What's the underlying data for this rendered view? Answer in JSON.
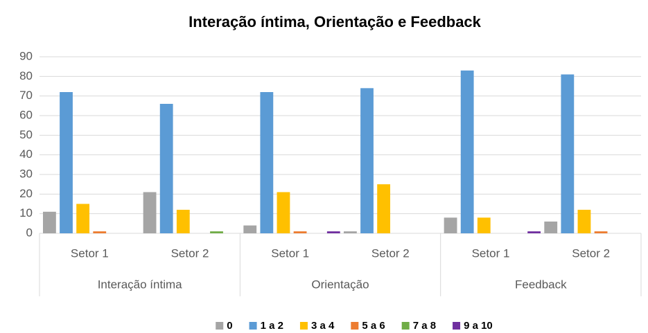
{
  "chart_data": {
    "type": "bar",
    "title": "Interação íntima, Orientação e Feedback",
    "categories": [
      "Setor 1",
      "Setor 2",
      "Setor 1",
      "Setor 2",
      "Setor 1",
      "Setor 2"
    ],
    "groups": [
      "Interação íntima",
      "Orientação",
      "Feedback"
    ],
    "series": [
      {
        "name": "0",
        "color": "#a5a5a5",
        "values": [
          11,
          21,
          4,
          1,
          8,
          6
        ]
      },
      {
        "name": "1 a 2",
        "color": "#5b9bd5",
        "values": [
          72,
          66,
          72,
          74,
          83,
          81
        ]
      },
      {
        "name": "3 a 4",
        "color": "#ffc000",
        "values": [
          15,
          12,
          21,
          25,
          8,
          12
        ]
      },
      {
        "name": "5 a 6",
        "color": "#ed7d31",
        "values": [
          1,
          0,
          1,
          0,
          0,
          1
        ]
      },
      {
        "name": "7 a 8",
        "color": "#70ad47",
        "values": [
          0,
          1,
          0,
          0,
          0,
          0
        ]
      },
      {
        "name": "9 a 10",
        "color": "#7030a0",
        "values": [
          0,
          0,
          1,
          0,
          1,
          0
        ]
      }
    ],
    "ylim": [
      0,
      90
    ],
    "yticks": [
      0,
      10,
      20,
      30,
      40,
      50,
      60,
      70,
      80,
      90
    ],
    "grid": true,
    "legend": "bottom"
  }
}
